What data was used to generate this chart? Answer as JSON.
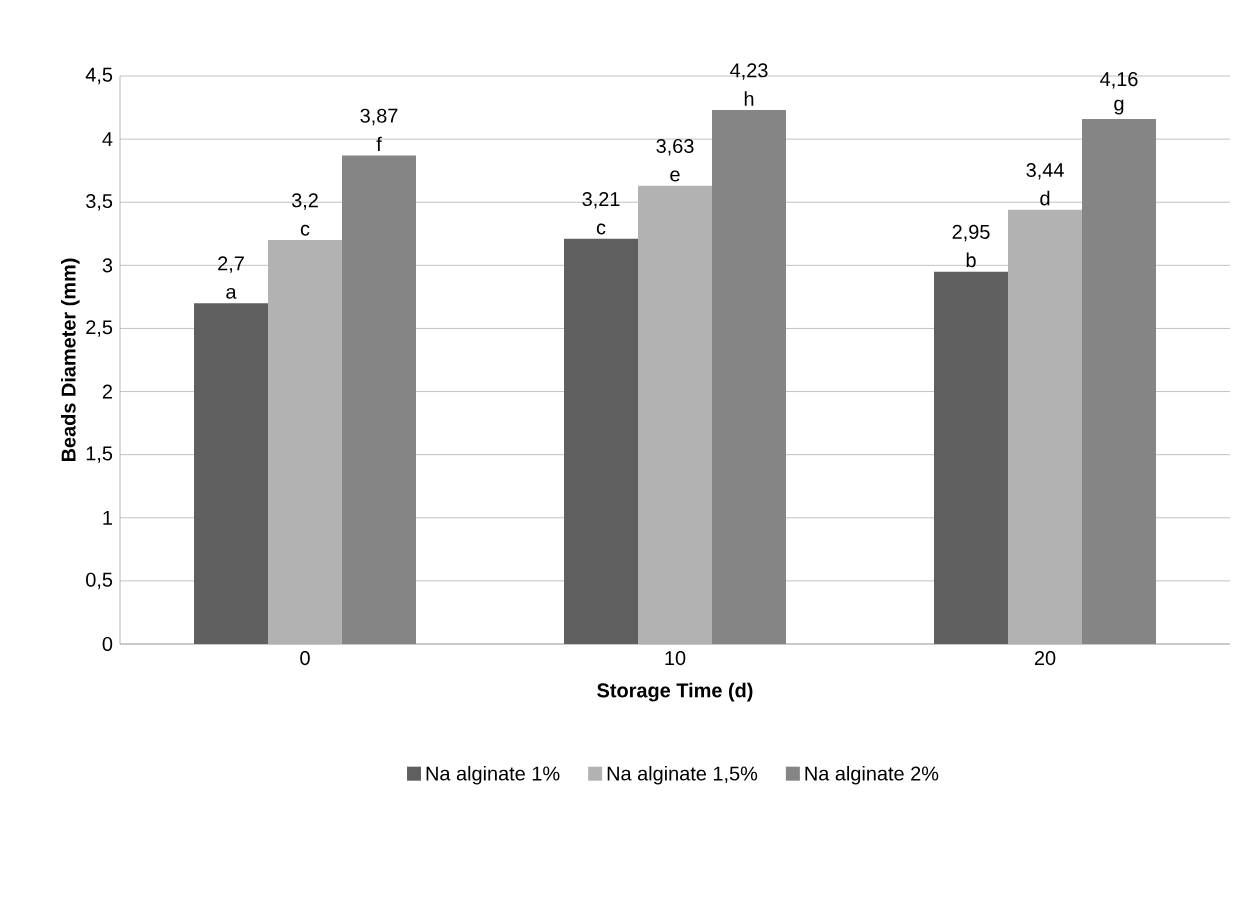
{
  "chart_data": {
    "type": "bar",
    "xlabel": "Storage Time (d)",
    "ylabel": "Beads Diameter (mm)",
    "categories": [
      "0",
      "10",
      "20"
    ],
    "series": [
      {
        "name": "Na alginate 1%",
        "color": "#5f5f5f",
        "values": [
          2.7,
          3.21,
          2.95
        ],
        "value_labels": [
          "2,7",
          "3,21",
          "2,95"
        ]
      },
      {
        "name": "Na alginate 1,5%",
        "color": "#b2b2b2",
        "values": [
          3.2,
          3.63,
          3.44
        ],
        "value_labels": [
          "3,2",
          "3,63",
          "3,44"
        ]
      },
      {
        "name": "Na alginate 2%",
        "color": "#858585",
        "values": [
          3.87,
          4.23,
          4.16
        ],
        "value_labels": [
          "3,87",
          "4,23",
          "4,16"
        ]
      }
    ],
    "annotations": [
      "a",
      "c",
      "f",
      "c",
      "e",
      "h",
      "b",
      "d",
      "g"
    ],
    "ylim": [
      0,
      4.5
    ],
    "yticks": [
      0,
      {
        "value": 0.5,
        "label": "0,5"
      },
      1,
      {
        "value": 1.5,
        "label": "1,5"
      },
      2,
      {
        "value": 2.5,
        "label": "2,5"
      },
      3,
      {
        "value": 3.5,
        "label": "3,5"
      },
      4,
      {
        "value": 4.5,
        "label": "4,5"
      }
    ],
    "grid": "y",
    "legend": "bottom"
  }
}
